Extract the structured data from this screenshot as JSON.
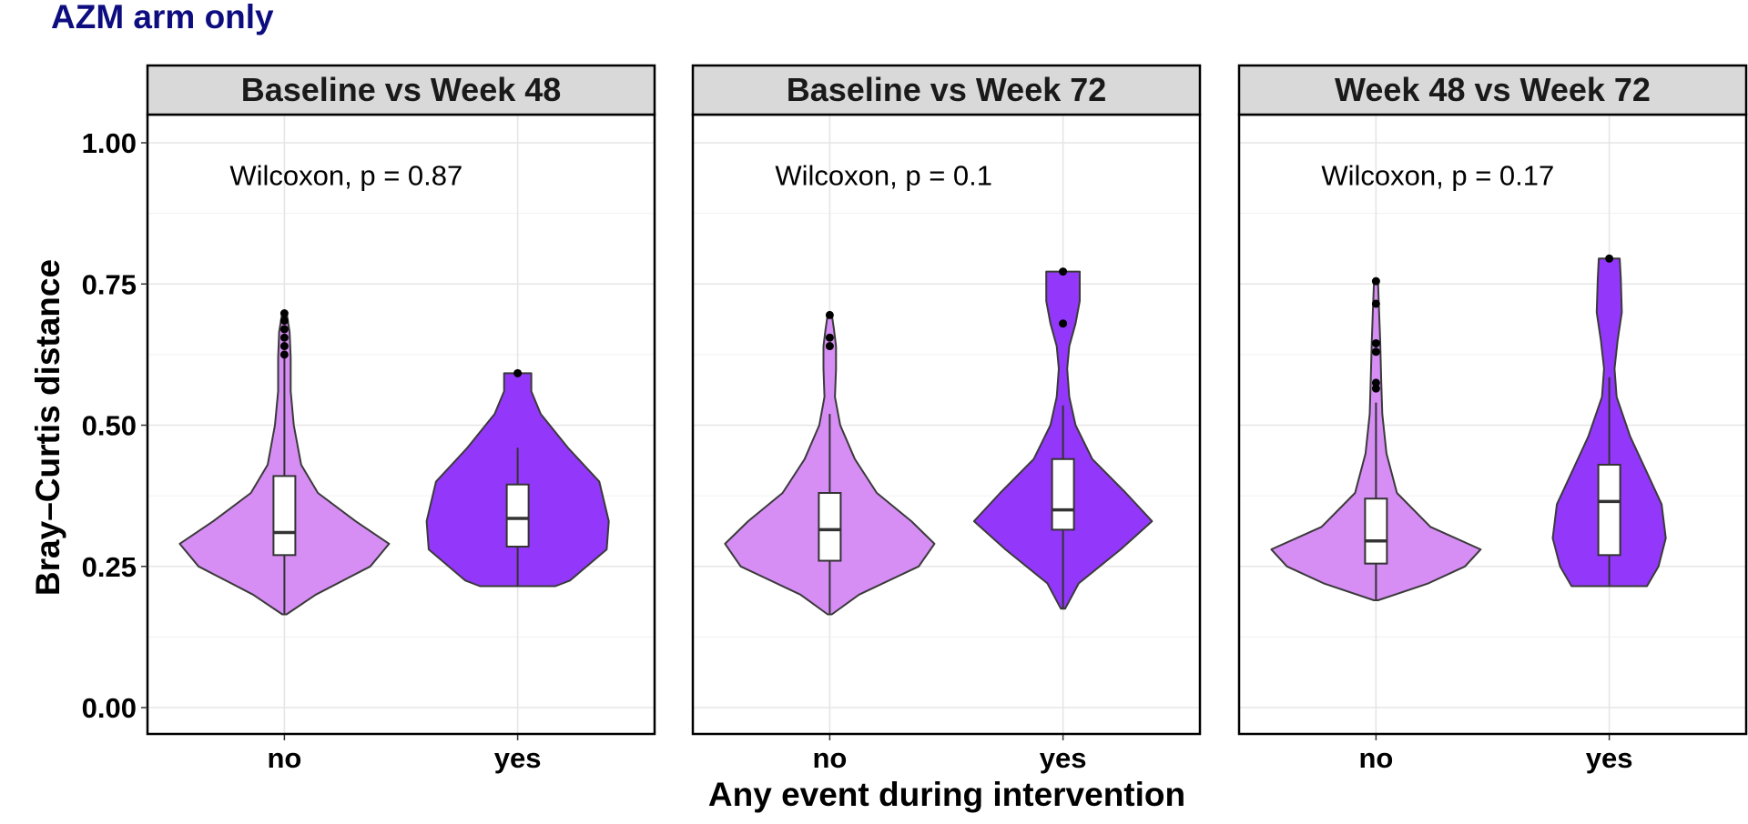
{
  "figure_title": "AZM arm only",
  "chart_data": {
    "type": "violin",
    "title": "AZM arm only",
    "xlabel": "Any event during intervention",
    "ylabel": "Bray–Curtis distance",
    "ylim": [
      0,
      1.0
    ],
    "ytick_values": [
      0.0,
      0.25,
      0.5,
      0.75,
      1.0
    ],
    "ytick_labels": [
      "0.00",
      "0.25",
      "0.50",
      "0.75",
      "1.00"
    ],
    "categories": [
      "no",
      "yes"
    ],
    "grid": true,
    "colors": {
      "no": "#d68ef5",
      "yes": "#9338fb",
      "title": "#0d0d80",
      "strip_bg": "#d9d9d9"
    },
    "panels": [
      {
        "strip": "Baseline vs Week 48",
        "annotation": "Wilcoxon, p = 0.87",
        "groups": [
          {
            "category": "no",
            "box": {
              "q1": 0.27,
              "median": 0.31,
              "q3": 0.41,
              "whisker_low": 0.165,
              "whisker_high": 0.62
            },
            "violin": {
              "y": [
                0.165,
                0.2,
                0.25,
                0.29,
                0.33,
                0.38,
                0.43,
                0.5,
                0.56,
                0.62,
                0.665,
                0.7
              ],
              "density": [
                0.02,
                0.3,
                0.82,
                1.0,
                0.68,
                0.32,
                0.16,
                0.09,
                0.06,
                0.06,
                0.05,
                0.02
              ]
            },
            "outliers": [
              0.625,
              0.64,
              0.655,
              0.67,
              0.685,
              0.698
            ]
          },
          {
            "category": "yes",
            "box": {
              "q1": 0.285,
              "median": 0.335,
              "q3": 0.395,
              "whisker_low": 0.215,
              "whisker_high": 0.46
            },
            "violin": {
              "y": [
                0.215,
                0.225,
                0.28,
                0.33,
                0.4,
                0.46,
                0.52,
                0.56,
                0.592
              ],
              "density": [
                0.36,
                0.5,
                0.85,
                0.87,
                0.78,
                0.48,
                0.22,
                0.13,
                0.13
              ]
            },
            "outliers": [
              0.592
            ]
          }
        ]
      },
      {
        "strip": "Baseline vs Week 72",
        "annotation": "Wilcoxon, p = 0.1",
        "groups": [
          {
            "category": "no",
            "box": {
              "q1": 0.26,
              "median": 0.315,
              "q3": 0.38,
              "whisker_low": 0.165,
              "whisker_high": 0.52
            },
            "violin": {
              "y": [
                0.165,
                0.2,
                0.25,
                0.29,
                0.33,
                0.38,
                0.44,
                0.5,
                0.55,
                0.6,
                0.64,
                0.67,
                0.695
              ],
              "density": [
                0.02,
                0.28,
                0.85,
                1.0,
                0.78,
                0.45,
                0.24,
                0.1,
                0.05,
                0.06,
                0.06,
                0.04,
                0.02
              ]
            },
            "outliers": [
              0.64,
              0.655,
              0.695
            ]
          },
          {
            "category": "yes",
            "box": {
              "q1": 0.315,
              "median": 0.35,
              "q3": 0.44,
              "whisker_low": 0.175,
              "whisker_high": 0.535
            },
            "violin": {
              "y": [
                0.175,
                0.22,
                0.28,
                0.33,
                0.38,
                0.44,
                0.5,
                0.55,
                0.6,
                0.64,
                0.68,
                0.72,
                0.772
              ],
              "density": [
                0.02,
                0.15,
                0.55,
                0.85,
                0.6,
                0.28,
                0.12,
                0.06,
                0.04,
                0.06,
                0.12,
                0.16,
                0.16
              ]
            },
            "outliers": [
              0.68,
              0.772
            ]
          }
        ]
      },
      {
        "strip": "Week 48 vs Week 72",
        "annotation": "Wilcoxon, p = 0.17",
        "groups": [
          {
            "category": "no",
            "box": {
              "q1": 0.255,
              "median": 0.295,
              "q3": 0.37,
              "whisker_low": 0.19,
              "whisker_high": 0.54
            },
            "violin": {
              "y": [
                0.19,
                0.22,
                0.25,
                0.28,
                0.32,
                0.38,
                0.45,
                0.52,
                0.58,
                0.65,
                0.7,
                0.75
              ],
              "density": [
                0.02,
                0.5,
                0.85,
                1.0,
                0.52,
                0.2,
                0.1,
                0.06,
                0.05,
                0.04,
                0.03,
                0.02
              ]
            },
            "outliers": [
              0.565,
              0.575,
              0.63,
              0.645,
              0.715,
              0.755
            ]
          },
          {
            "category": "yes",
            "box": {
              "q1": 0.27,
              "median": 0.365,
              "q3": 0.43,
              "whisker_low": 0.215,
              "whisker_high": 0.585
            },
            "violin": {
              "y": [
                0.215,
                0.25,
                0.3,
                0.36,
                0.42,
                0.48,
                0.55,
                0.6,
                0.65,
                0.7,
                0.76,
                0.795
              ],
              "density": [
                0.36,
                0.47,
                0.54,
                0.5,
                0.35,
                0.2,
                0.07,
                0.05,
                0.08,
                0.12,
                0.11,
                0.1
              ]
            },
            "outliers": [
              0.795
            ]
          }
        ]
      }
    ]
  }
}
